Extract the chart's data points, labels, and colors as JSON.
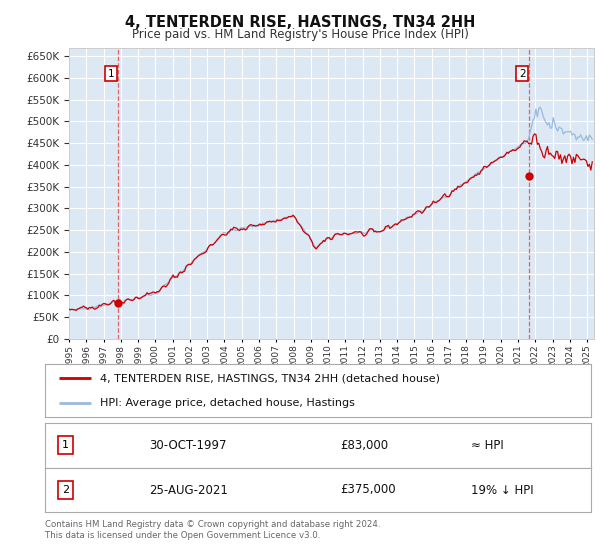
{
  "title": "4, TENTERDEN RISE, HASTINGS, TN34 2HH",
  "subtitle": "Price paid vs. HM Land Registry's House Price Index (HPI)",
  "bg_color": "#dde8f5",
  "grid_color": "#ffffff",
  "hpi_color": "#99bbdd",
  "price_color": "#cc0000",
  "sale1_date": 1997.83,
  "sale1_price": 83000,
  "sale2_date": 2021.65,
  "sale2_price": 375000,
  "ylim": [
    0,
    670000
  ],
  "yticks": [
    0,
    50000,
    100000,
    150000,
    200000,
    250000,
    300000,
    350000,
    400000,
    450000,
    500000,
    550000,
    600000,
    650000
  ],
  "legend_line1": "4, TENTERDEN RISE, HASTINGS, TN34 2HH (detached house)",
  "legend_line2": "HPI: Average price, detached house, Hastings",
  "table_row1_num": "1",
  "table_row1_date": "30-OCT-1997",
  "table_row1_price": "£83,000",
  "table_row1_hpi": "≈ HPI",
  "table_row2_num": "2",
  "table_row2_date": "25-AUG-2021",
  "table_row2_price": "£375,000",
  "table_row2_hpi": "19% ↓ HPI",
  "footer": "Contains HM Land Registry data © Crown copyright and database right 2024.\nThis data is licensed under the Open Government Licence v3.0."
}
